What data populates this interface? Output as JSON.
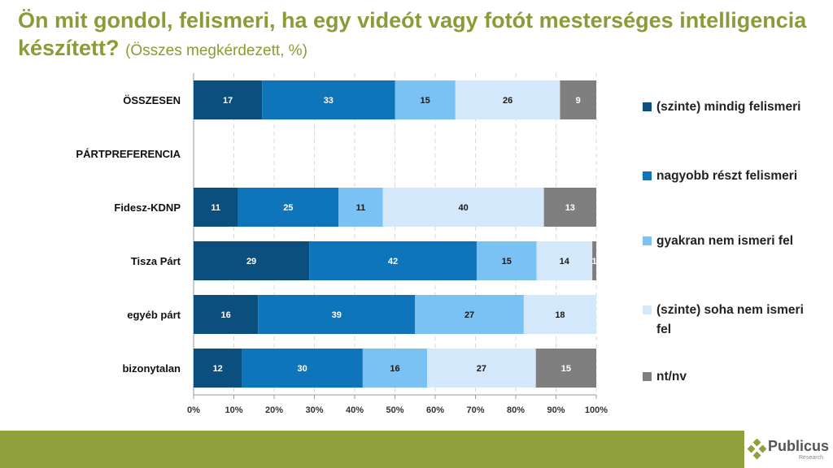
{
  "title": {
    "main": "Ön mit gondol, felismeri, ha egy videót vagy fotót mesterséges intelligencia készített?",
    "sub": "(Összes megkérdezett, %)"
  },
  "chart_data": {
    "type": "bar",
    "orientation": "horizontal-stacked-100",
    "categories": [
      "ÖSSZESEN",
      "PÁRTPREFERENCIA",
      "Fidesz-KDNP",
      "Tisza Párt",
      "egyéb párt",
      "bizonytalan"
    ],
    "series": [
      {
        "name": "(szinte) mindig felismeri",
        "color": "#0b4f7e",
        "label_color": "#ffffff",
        "values": [
          17,
          null,
          11,
          29,
          16,
          12
        ]
      },
      {
        "name": "nagyobb részt felismeri",
        "color": "#0f75bb",
        "label_color": "#ffffff",
        "values": [
          33,
          null,
          25,
          42,
          39,
          30
        ]
      },
      {
        "name": "gyakran nem ismeri fel",
        "color": "#7ac1f4",
        "label_color": "#1a1a1a",
        "values": [
          15,
          null,
          11,
          15,
          27,
          16
        ]
      },
      {
        "name": "(szinte) soha nem ismeri fel",
        "color": "#d3e8fa",
        "label_color": "#1a1a1a",
        "values": [
          26,
          null,
          40,
          14,
          18,
          27
        ]
      },
      {
        "name": "nt/nv",
        "color": "#7f7f7f",
        "label_color": "#ffffff",
        "values": [
          9,
          null,
          13,
          1,
          null,
          15
        ]
      }
    ],
    "x_ticks": [
      "0%",
      "10%",
      "20%",
      "30%",
      "40%",
      "50%",
      "60%",
      "70%",
      "80%",
      "90%",
      "100%"
    ],
    "xlim": [
      0,
      100
    ],
    "grid": true,
    "legend_position": "right"
  },
  "logo": {
    "name": "Publicus",
    "sub": "Research"
  }
}
